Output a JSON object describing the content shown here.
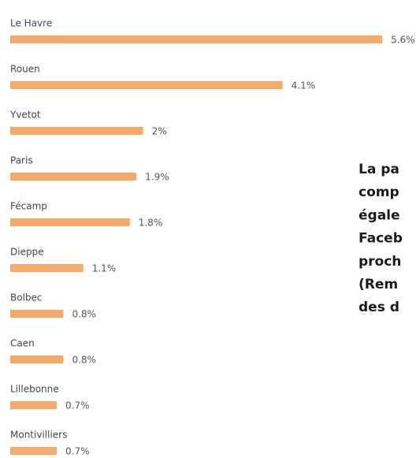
{
  "chart_data": {
    "type": "barh",
    "categories": [
      "Le Havre",
      "Rouen",
      "Yvetot",
      "Paris",
      "Fécamp",
      "Dieppe",
      "Bolbec",
      "Caen",
      "Lillebonne",
      "Montivilliers"
    ],
    "values": [
      5.6,
      4.1,
      2,
      1.9,
      1.8,
      1.1,
      0.8,
      0.8,
      0.7,
      0.7
    ],
    "value_labels": [
      "5.6%",
      "4.1%",
      "2%",
      "1.9%",
      "1.8%",
      "1.1%",
      "0.8%",
      "0.8%",
      "0.7%",
      "0.7%"
    ],
    "color": "#f5aa6c",
    "annotations": [
      "La pa",
      "comp",
      "égale",
      "Faceb",
      "proch",
      "(Rem",
      "des d"
    ]
  }
}
